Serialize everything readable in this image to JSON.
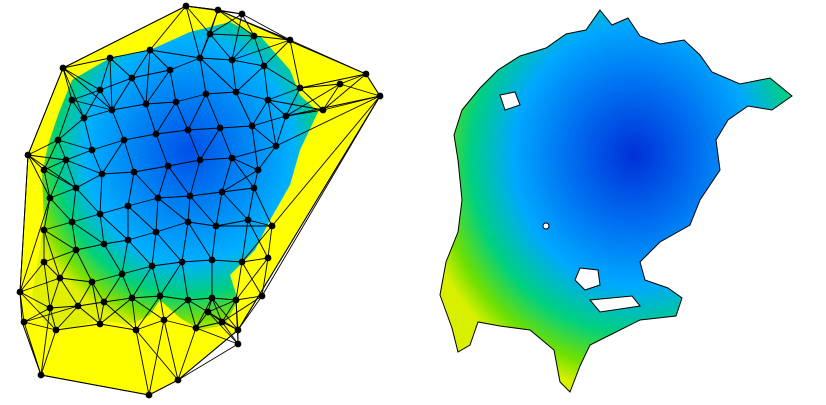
{
  "figure": {
    "panels": [
      {
        "id": "triangulated-mesh",
        "caption": ""
      },
      {
        "id": "raster-surface",
        "caption": ""
      }
    ]
  },
  "colors": {
    "background": "#ffffff",
    "hull_fill": "#ffff00",
    "low_value": "#ffff00",
    "mid_low": "#7fe000",
    "mid": "#00cc66",
    "mid_high": "#0099ff",
    "high_value": "#0033dd",
    "mesh_edge": "#000000",
    "mesh_node": "#000000",
    "raster_outline": "#000000"
  }
}
